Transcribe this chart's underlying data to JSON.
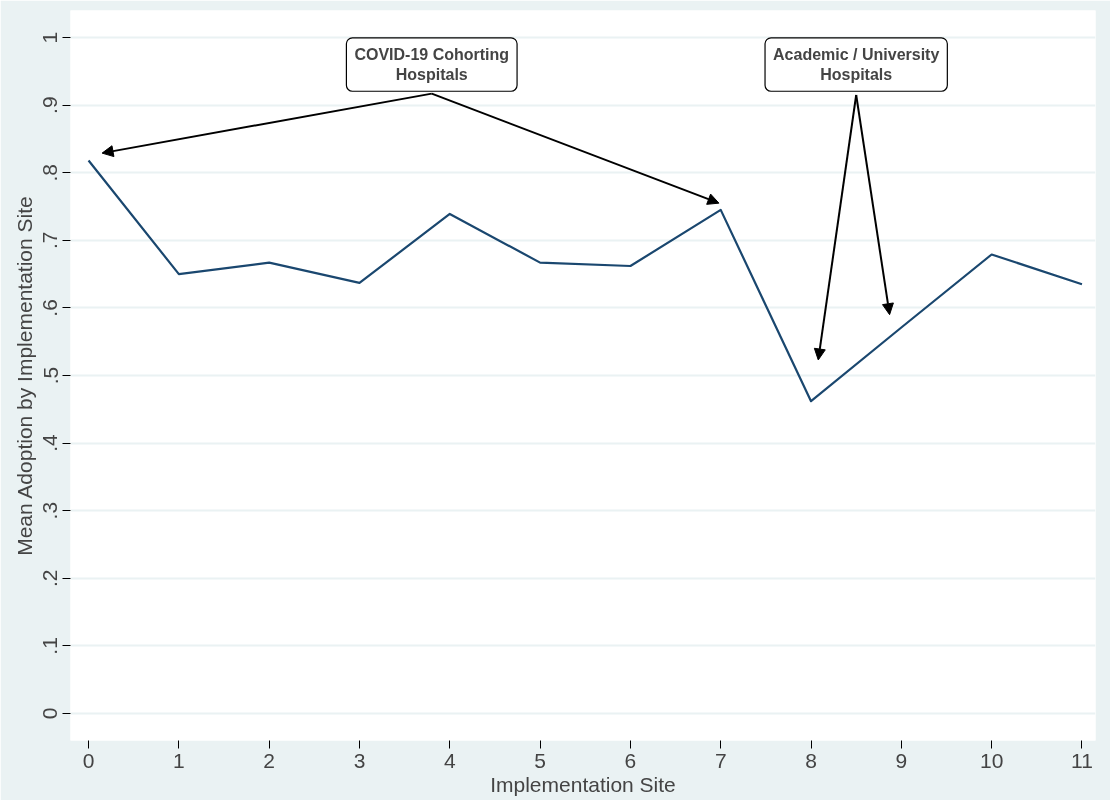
{
  "chart_data": {
    "type": "line",
    "xlabel": "Implementation Site",
    "ylabel": "Mean Adoption by Implementation Site",
    "x": [
      0,
      1,
      2,
      3,
      4,
      5,
      6,
      7,
      8,
      9,
      10,
      11
    ],
    "series": [
      {
        "color": "#1a476f",
        "values": [
          0.818,
          0.65,
          0.667,
          0.637,
          0.739,
          0.667,
          0.662,
          0.745,
          0.462,
          0.571,
          0.679,
          0.635
        ]
      }
    ],
    "xlim": [
      -0.2,
      11.15
    ],
    "ylim": [
      -0.04,
      1.04
    ],
    "xticks": [
      0,
      1,
      2,
      3,
      4,
      5,
      6,
      7,
      8,
      9,
      10,
      11
    ],
    "yticks": [
      0,
      {
        "value": 0.1,
        "label": ".1"
      },
      {
        "value": 0.2,
        "label": ".2"
      },
      {
        "value": 0.3,
        "label": ".3"
      },
      {
        "value": 0.4,
        "label": ".4"
      },
      {
        "value": 0.5,
        "label": ".5"
      },
      {
        "value": 0.6,
        "label": ".6"
      },
      {
        "value": 0.7,
        "label": ".7"
      },
      {
        "value": 0.8,
        "label": ".8"
      },
      {
        "value": 0.9,
        "label": ".9"
      },
      1
    ],
    "grid": "y",
    "marker": "none",
    "line_style": "solid",
    "annotations": [
      "COVID-19 Cohorting\nHospitals",
      "Academic / University\nHospitals"
    ]
  }
}
